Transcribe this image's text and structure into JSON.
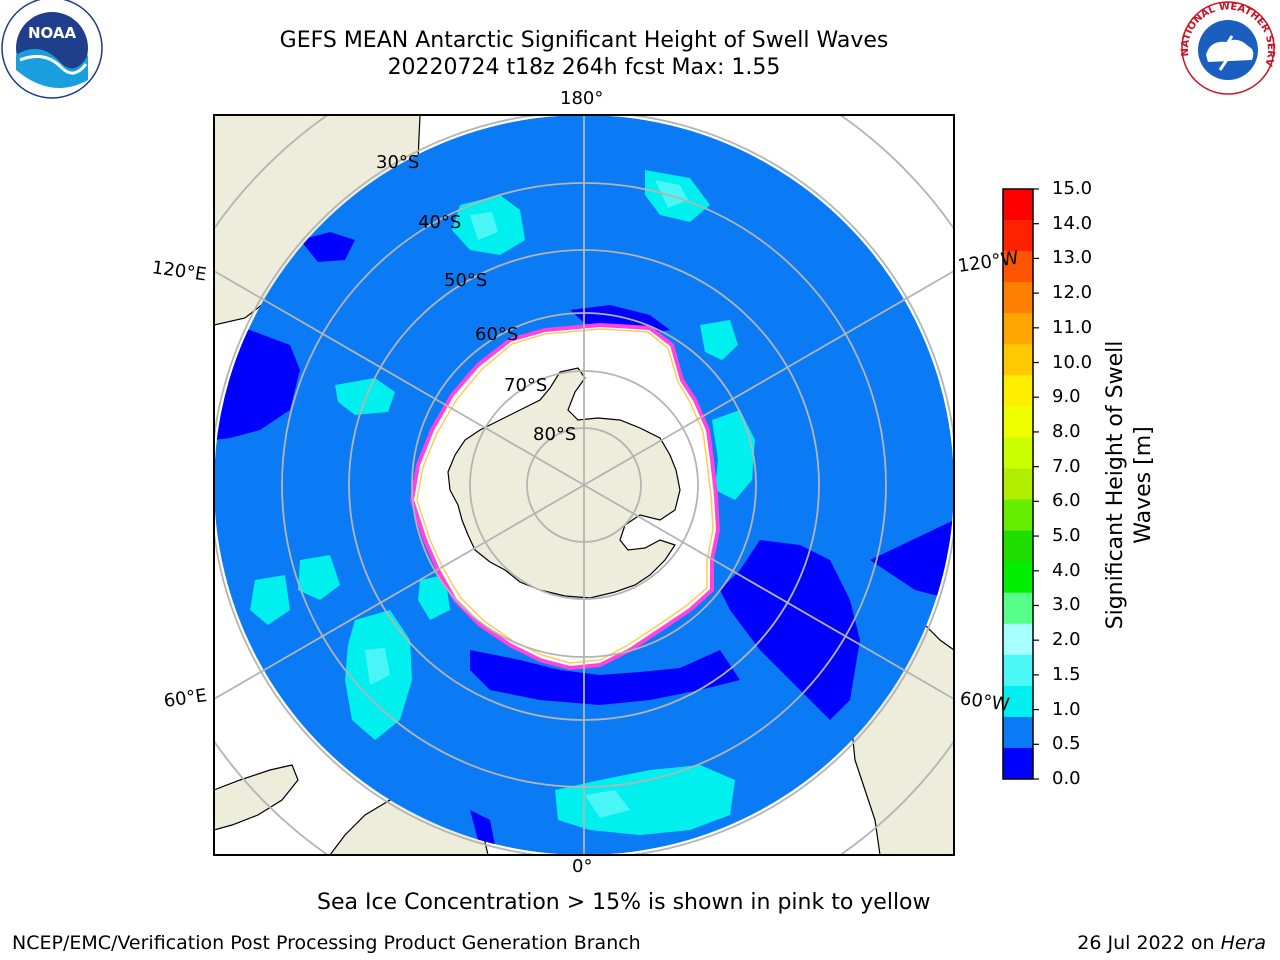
{
  "header": {
    "title_line1": "GEFS MEAN Antarctic Significant Height of Swell Waves",
    "title_line2": "20220724 t18z 264h fcst   Max: 1.55"
  },
  "logos": {
    "left": "noaa-logo",
    "right": "national-weather-service-logo",
    "left_text": "NOAA",
    "right_text": "NATIONAL WEATHER SERVICE"
  },
  "map": {
    "projection": "south-polar-stereographic",
    "longitude_labels": {
      "top": "180°",
      "bottom": "0°",
      "upper_left": "120°E",
      "upper_right": "120°W",
      "lower_left": "60°E",
      "lower_right": "60°W"
    },
    "latitude_labels": [
      "30°S",
      "40°S",
      "50°S",
      "60°S",
      "70°S",
      "80°S"
    ],
    "colors": {
      "land": "#eeecdb",
      "ocean_main": "#0a7af5",
      "ocean_low": "#0000ff",
      "swell_1_5": "#00f0f0",
      "swell_2_0": "#4af5f5",
      "sea_ice_edge": "#ff44dd",
      "sea_ice_inner": "#ffaa22",
      "sea_ice_region": "#ffffff",
      "graticule": "#b4b4b4"
    }
  },
  "colorbar": {
    "label": "Significant Height of Swell Waves [m]",
    "ticks": [
      "15.0",
      "14.0",
      "13.0",
      "12.0",
      "11.0",
      "10.0",
      "9.0",
      "8.0",
      "7.0",
      "6.0",
      "5.0",
      "4.0",
      "3.0",
      "2.0",
      "1.5",
      "1.0",
      "0.5",
      "0.0"
    ],
    "colors_top_to_bottom": [
      "#ff0000",
      "#ff2200",
      "#ff5500",
      "#ff8000",
      "#ffa500",
      "#ffc800",
      "#ffee00",
      "#f0ff00",
      "#ccff00",
      "#b0ee00",
      "#66ee00",
      "#20dd00",
      "#00ee00",
      "#55ff88",
      "#a8ffff",
      "#4cf7f7",
      "#00f0f0",
      "#0a7af5",
      "#0000ff"
    ]
  },
  "footer": {
    "note": "Sea Ice Concentration > 15% is shown in pink to yellow",
    "credit": "NCEP/EMC/Verification Post Processing Product Generation Branch",
    "date_prefix": "26 Jul 2022 on ",
    "machine": "Hera"
  }
}
